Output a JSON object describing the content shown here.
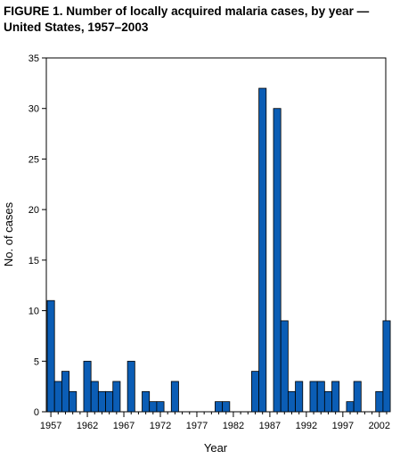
{
  "chart_data": {
    "type": "bar",
    "title": "FIGURE 1. Number of locally acquired malaria cases, by year — United States, 1957–2003",
    "xlabel": "Year",
    "ylabel": "No. of cases",
    "ylim": [
      0,
      35
    ],
    "yticks": [
      0,
      5,
      10,
      15,
      20,
      25,
      30,
      35
    ],
    "xticks": [
      "1957",
      "1962",
      "1967",
      "1972",
      "1977",
      "1982",
      "1987",
      "1992",
      "1997",
      "2002"
    ],
    "grid": false,
    "categories": [
      "1957",
      "1958",
      "1959",
      "1960",
      "1961",
      "1962",
      "1963",
      "1964",
      "1965",
      "1966",
      "1967",
      "1968",
      "1969",
      "1970",
      "1971",
      "1972",
      "1973",
      "1974",
      "1975",
      "1976",
      "1977",
      "1978",
      "1979",
      "1980",
      "1981",
      "1982",
      "1983",
      "1984",
      "1985",
      "1986",
      "1987",
      "1988",
      "1989",
      "1990",
      "1991",
      "1992",
      "1993",
      "1994",
      "1995",
      "1996",
      "1997",
      "1998",
      "1999",
      "2000",
      "2001",
      "2002",
      "2003"
    ],
    "values": [
      11,
      3,
      4,
      2,
      0,
      5,
      3,
      2,
      2,
      3,
      0,
      5,
      0,
      2,
      1,
      1,
      0,
      3,
      0,
      0,
      0,
      0,
      0,
      1,
      1,
      0,
      0,
      0,
      4,
      32,
      0,
      30,
      9,
      2,
      3,
      0,
      3,
      3,
      2,
      3,
      0,
      1,
      3,
      0,
      0,
      2,
      9
    ],
    "bar_color": "#0b5db5"
  }
}
